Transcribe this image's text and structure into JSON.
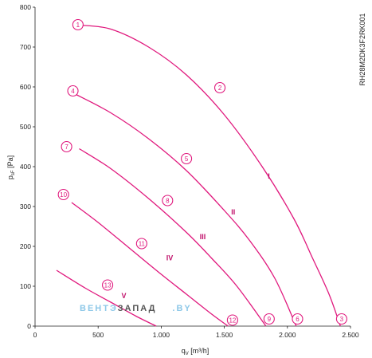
{
  "chart_data": {
    "type": "line",
    "xlabel_main": "q",
    "xlabel_sub": "V",
    "xlabel_unit": " [m³/h]",
    "ylabel_main": "p",
    "ylabel_sub": "sF",
    "ylabel_unit": " [Pa]",
    "xlim": [
      0,
      2500
    ],
    "ylim": [
      0,
      800
    ],
    "xticks": [
      0,
      500,
      1000,
      1500,
      2000,
      2500
    ],
    "xtick_labels": [
      "0",
      "500",
      "1.000",
      "1.500",
      "2.000",
      "2.500"
    ],
    "yticks": [
      0,
      100,
      200,
      300,
      400,
      500,
      600,
      700,
      800
    ],
    "ytick_labels": [
      "0",
      "100",
      "200",
      "300",
      "400",
      "500",
      "600",
      "700",
      "800"
    ],
    "model_code": "RH28M2DK3F2RK001",
    "series": [
      {
        "name": "I",
        "x": [
          350,
          600,
          900,
          1200,
          1500,
          1800,
          2050,
          2200,
          2330,
          2420
        ],
        "y": [
          755,
          745,
          700,
          630,
          530,
          400,
          270,
          170,
          80,
          0
        ]
      },
      {
        "name": "II",
        "x": [
          300,
          600,
          900,
          1200,
          1500,
          1700,
          1900,
          2070
        ],
        "y": [
          585,
          535,
          470,
          390,
          290,
          215,
          120,
          0
        ]
      },
      {
        "name": "III",
        "x": [
          350,
          600,
          900,
          1200,
          1400,
          1600,
          1830
        ],
        "y": [
          445,
          395,
          320,
          235,
          170,
          100,
          0
        ]
      },
      {
        "name": "IV",
        "x": [
          290,
          500,
          750,
          1000,
          1200,
          1400,
          1530
        ],
        "y": [
          310,
          260,
          195,
          130,
          80,
          30,
          0
        ]
      },
      {
        "name": "V",
        "x": [
          170,
          400,
          600,
          800,
          960
        ],
        "y": [
          140,
          95,
          60,
          25,
          0
        ]
      }
    ],
    "roman_labels": [
      {
        "text": "I",
        "x": 1845,
        "y": 370
      },
      {
        "text": "II",
        "x": 1555,
        "y": 280
      },
      {
        "text": "III",
        "x": 1305,
        "y": 218
      },
      {
        "text": "IV",
        "x": 1040,
        "y": 165
      },
      {
        "text": "V",
        "x": 685,
        "y": 70
      }
    ],
    "points": [
      {
        "id": "1",
        "x": 340,
        "y": 756
      },
      {
        "id": "2",
        "x": 1465,
        "y": 598
      },
      {
        "id": "3",
        "x": 2430,
        "y": 18
      },
      {
        "id": "4",
        "x": 300,
        "y": 590
      },
      {
        "id": "5",
        "x": 1200,
        "y": 420
      },
      {
        "id": "6",
        "x": 2080,
        "y": 18
      },
      {
        "id": "7",
        "x": 250,
        "y": 450
      },
      {
        "id": "8",
        "x": 1050,
        "y": 315
      },
      {
        "id": "9",
        "x": 1855,
        "y": 18
      },
      {
        "id": "10",
        "x": 225,
        "y": 330
      },
      {
        "id": "11",
        "x": 845,
        "y": 207
      },
      {
        "id": "12",
        "x": 1565,
        "y": 15
      },
      {
        "id": "13",
        "x": 575,
        "y": 103
      }
    ],
    "grid": false,
    "curve_color": "#e0187d"
  },
  "watermark": {
    "part1": "ВЕНТЭ",
    "part2": "ЗАПАД",
    "part3": ".BY",
    "color1": "#8ec8e8",
    "color2": "#555555"
  }
}
